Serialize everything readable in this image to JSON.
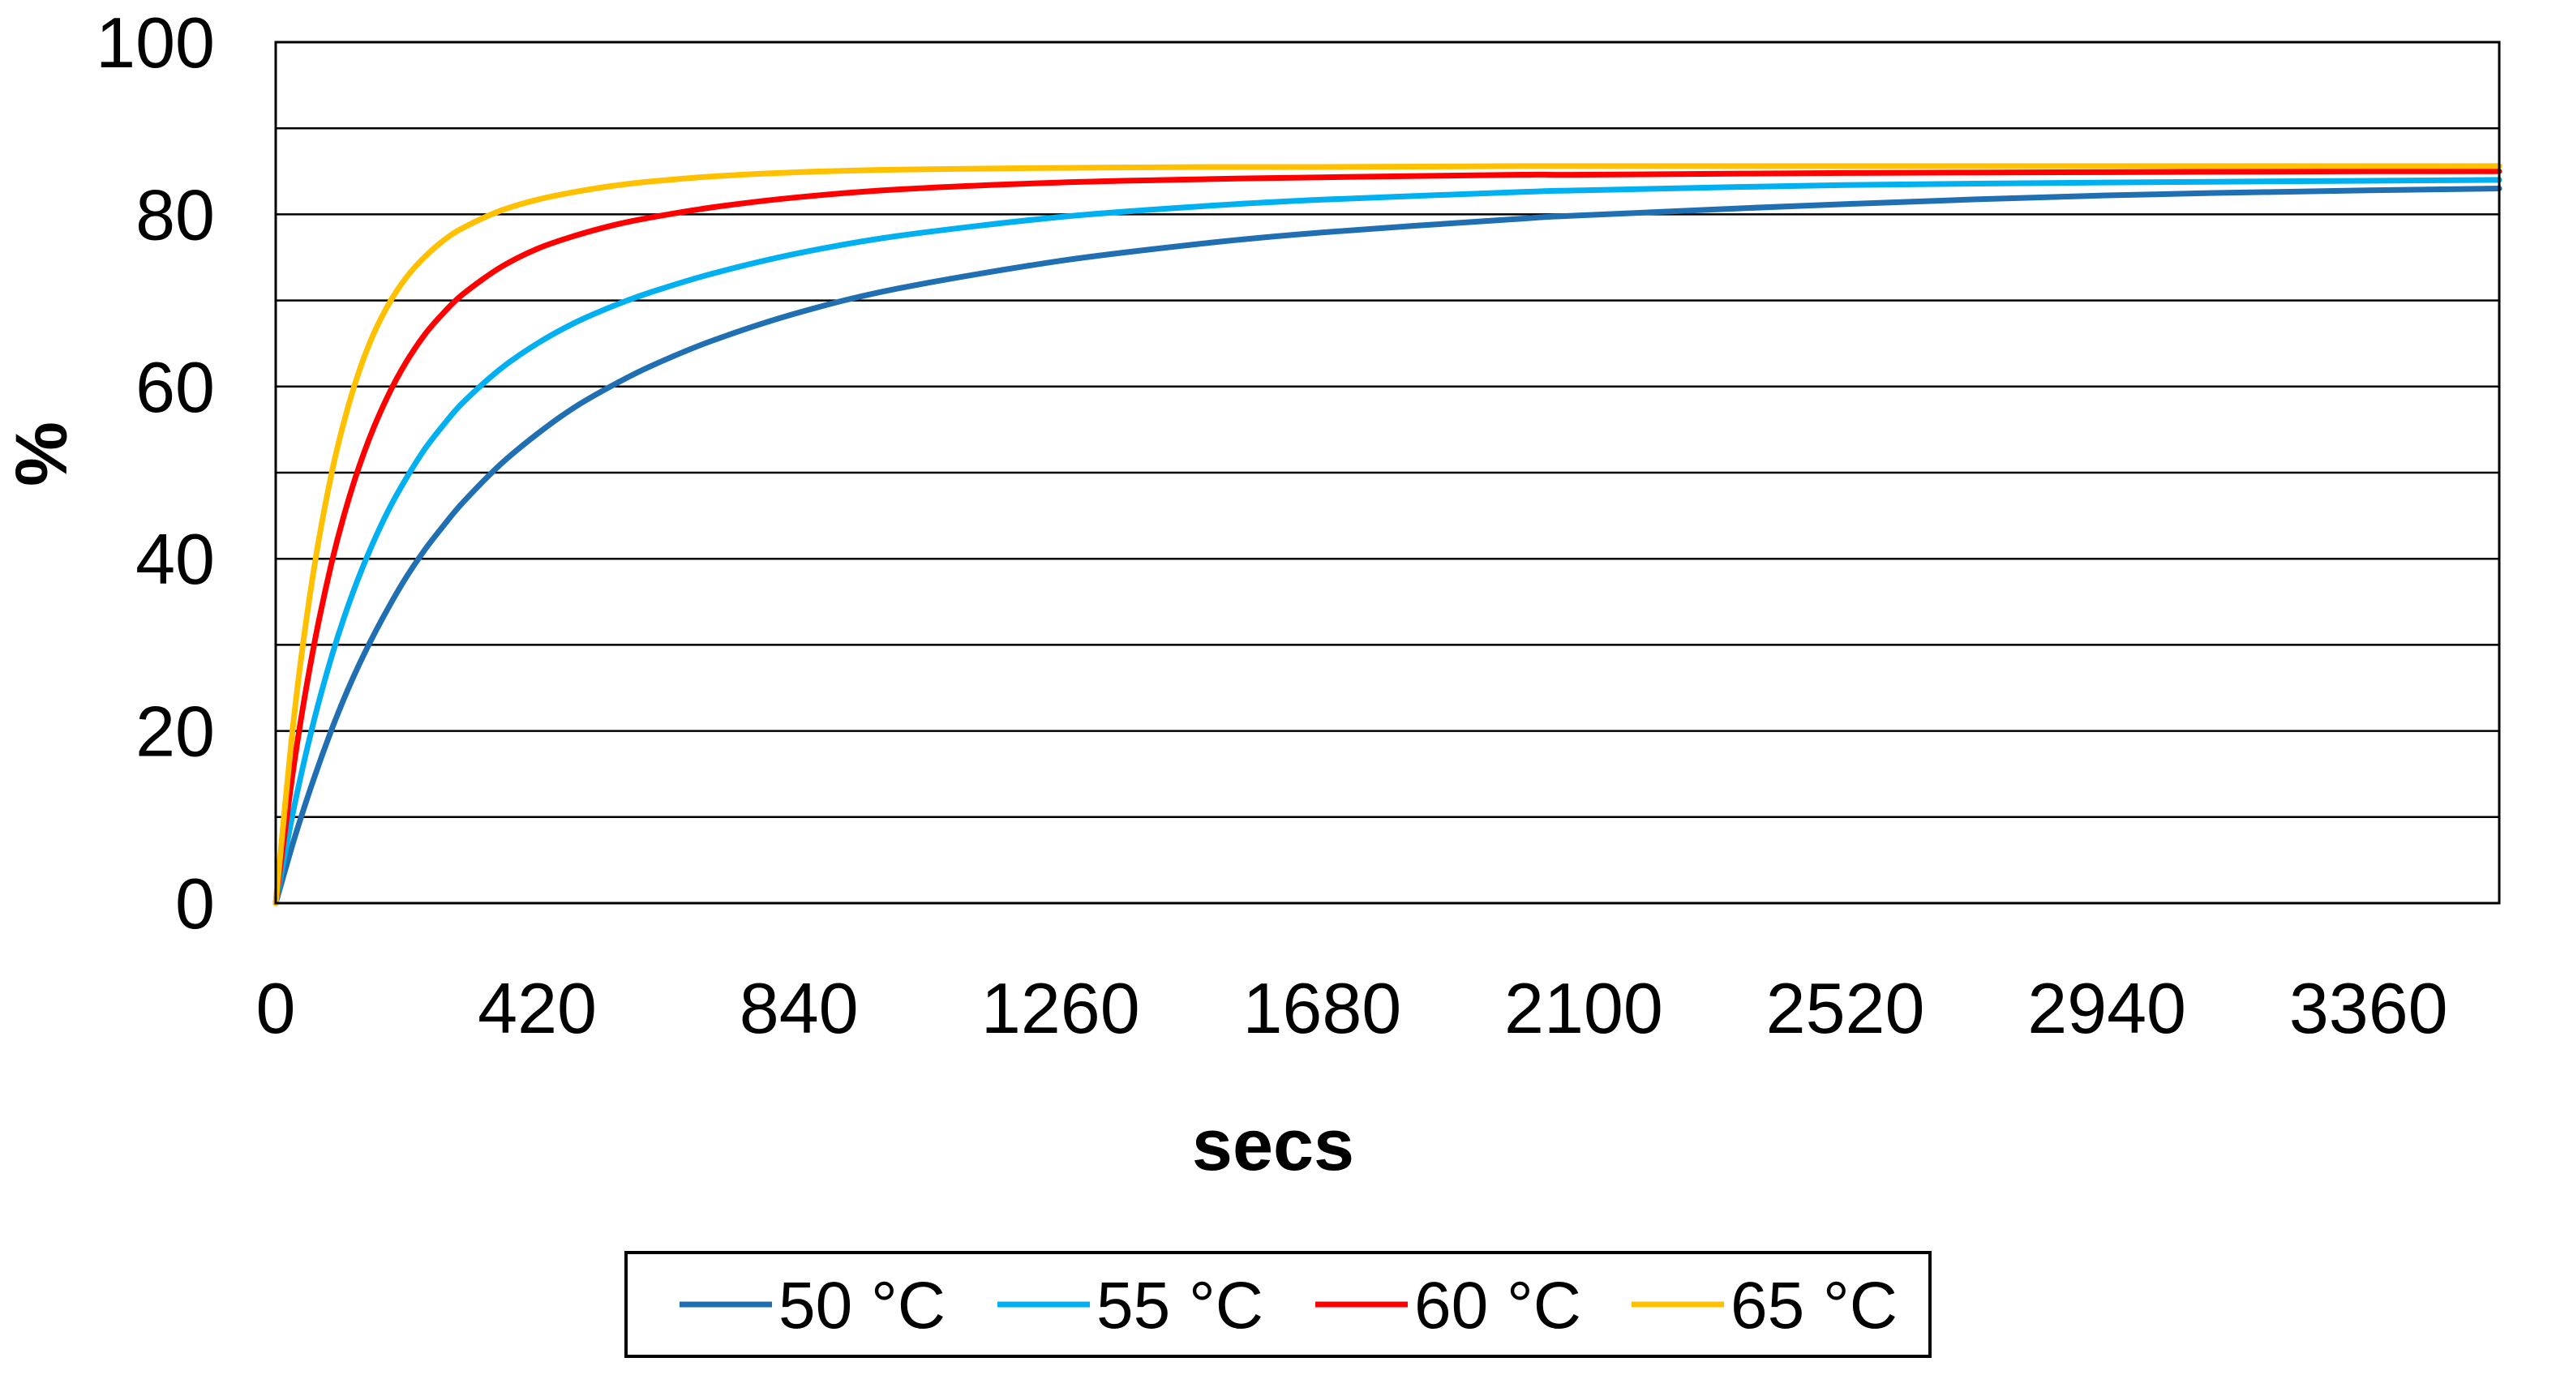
{
  "chart_data": {
    "type": "line",
    "title": "",
    "xlabel": "secs",
    "ylabel": "%",
    "xlim": [
      0,
      3570
    ],
    "ylim": [
      0,
      100
    ],
    "x_ticks": [
      0,
      420,
      840,
      1260,
      1680,
      2100,
      2520,
      2940,
      3360
    ],
    "x_tick_labels": [
      "0",
      "420",
      "840",
      "1260",
      "1680",
      "2100",
      "2520",
      "2940",
      "3360"
    ],
    "y_ticks": [
      0,
      20,
      40,
      60,
      80,
      100
    ],
    "y_tick_labels": [
      "0",
      "20",
      "40",
      "60",
      "80",
      "100"
    ],
    "gridlines_y": [
      10,
      20,
      30,
      40,
      50,
      60,
      70,
      80,
      90,
      100
    ],
    "grid": true,
    "legend_position": "bottom",
    "x": [
      0,
      30,
      60,
      90,
      120,
      150,
      180,
      210,
      240,
      270,
      300,
      360,
      420,
      480,
      540,
      600,
      700,
      840,
      1000,
      1260,
      1500,
      1680,
      2000,
      2100,
      2520,
      2940,
      3360,
      3570
    ],
    "series": [
      {
        "name": "50 °C",
        "label_num": "50",
        "label_unit": "°C",
        "color": "#1F6FB2",
        "values": [
          0,
          7.5,
          14.2,
          20.2,
          25.5,
          30.1,
          34.2,
          37.9,
          41.1,
          43.9,
          46.5,
          50.9,
          54.5,
          57.6,
          60.1,
          62.3,
          65.3,
          68.6,
          71.4,
          74.6,
          76.7,
          77.9,
          79.5,
          79.9,
          81.2,
          82.2,
          82.8,
          83.0
        ]
      },
      {
        "name": "55 °C",
        "label_num": "55",
        "label_unit": "°C",
        "color": "#00B0F0",
        "values": [
          0,
          11.3,
          20.8,
          28.7,
          35.3,
          40.8,
          45.5,
          49.4,
          52.8,
          55.6,
          58.1,
          62.0,
          65.0,
          67.4,
          69.3,
          70.9,
          73.1,
          75.5,
          77.5,
          79.7,
          81.0,
          81.7,
          82.6,
          82.8,
          83.4,
          83.7,
          83.9,
          84.0
        ]
      },
      {
        "name": "60 °C",
        "label_num": "60",
        "label_unit": "°C",
        "color": "#FF0000",
        "values": [
          0,
          16.4,
          29.4,
          39.6,
          47.6,
          53.9,
          58.9,
          62.9,
          66.1,
          68.6,
          70.7,
          73.8,
          76.0,
          77.5,
          78.7,
          79.6,
          80.8,
          82.0,
          82.9,
          83.7,
          84.1,
          84.3,
          84.6,
          84.6,
          84.8,
          84.9,
          85.0,
          85.0
        ]
      },
      {
        "name": "65 °C",
        "label_num": "65",
        "label_unit": "°C",
        "color": "#FFC000",
        "values": [
          0,
          22.0,
          38.2,
          50.0,
          58.6,
          64.9,
          69.4,
          72.7,
          75.1,
          77.0,
          78.4,
          80.4,
          81.7,
          82.6,
          83.3,
          83.8,
          84.4,
          84.9,
          85.2,
          85.4,
          85.5,
          85.5,
          85.6,
          85.6,
          85.6,
          85.6,
          85.6,
          85.6
        ]
      }
    ]
  }
}
